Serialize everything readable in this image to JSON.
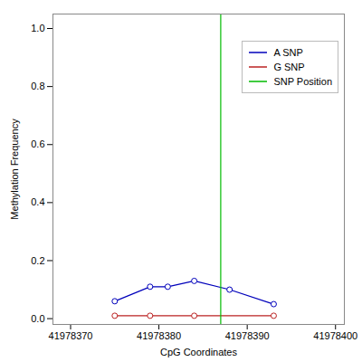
{
  "chart_data": {
    "type": "line",
    "xlabel": "CpG Coordinates",
    "ylabel": "Methylation Frequency",
    "series": [
      {
        "name": "A SNP",
        "color": "#0000bb",
        "marker": "o",
        "line_style": "solid",
        "x": [
          41978375,
          41978379,
          41978381,
          41978384,
          41978388,
          41978393
        ],
        "values": [
          0.06,
          0.11,
          0.11,
          0.13,
          0.1,
          0.05
        ]
      },
      {
        "name": "G SNP",
        "color": "#bb2222",
        "marker": "o",
        "line_style": "solid",
        "x": [
          41978375,
          41978379,
          41978384,
          41978393
        ],
        "values": [
          0.01,
          0.01,
          0.01,
          0.01
        ]
      },
      {
        "name": "SNP Position",
        "type": "vline",
        "color": "#00bb00",
        "line_style": "solid",
        "x": [
          41978387
        ]
      }
    ],
    "xlim": [
      41978368,
      41978401
    ],
    "ylim": [
      -0.02,
      1.05
    ],
    "xticks": [
      41978370,
      41978380,
      41978390,
      41978400
    ],
    "yticks": [
      {
        "value": 0.0,
        "label": "0.0"
      },
      0.2,
      0.4,
      0.6,
      0.8,
      {
        "value": 1.0,
        "label": "1.0"
      }
    ],
    "legend": "upper right",
    "grid": false
  }
}
